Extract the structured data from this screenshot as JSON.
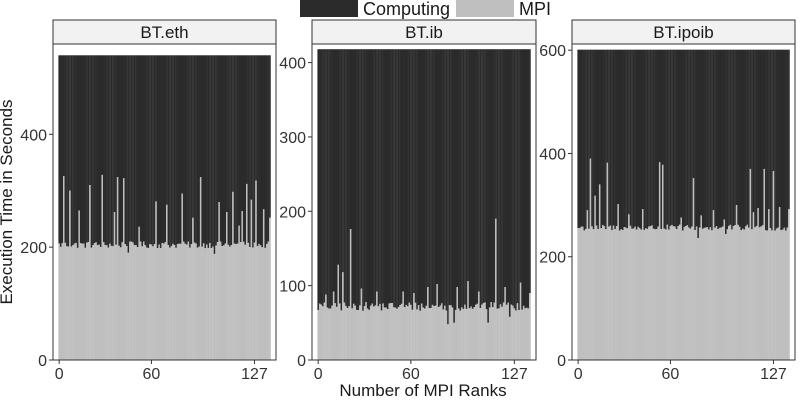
{
  "chart_data": [
    {
      "type": "bar",
      "stacked": true,
      "facet_title": "BT.eth",
      "ylim": [
        0,
        560
      ],
      "yticks": [
        0,
        200,
        400
      ],
      "xticks": [
        0,
        60,
        127
      ],
      "computing_total": 540,
      "mpi_base": 204,
      "mpi_jitter": 6,
      "mpi_spikes": [
        [
          3,
          326
        ],
        [
          7,
          300
        ],
        [
          13,
          265
        ],
        [
          20,
          310
        ],
        [
          28,
          328
        ],
        [
          36,
          262
        ],
        [
          38,
          324
        ],
        [
          42,
          322
        ],
        [
          52,
          236
        ],
        [
          63,
          281
        ],
        [
          70,
          275
        ],
        [
          80,
          295
        ],
        [
          87,
          252
        ],
        [
          92,
          324
        ],
        [
          104,
          280
        ],
        [
          109,
          262
        ],
        [
          113,
          298
        ],
        [
          117,
          238
        ],
        [
          119,
          264
        ],
        [
          122,
          312
        ],
        [
          125,
          284
        ],
        [
          128,
          318
        ],
        [
          133,
          267
        ],
        [
          137,
          252
        ]
      ],
      "mpi_low": [
        [
          45,
          190
        ],
        [
          101,
          188
        ]
      ]
    },
    {
      "type": "bar",
      "stacked": true,
      "facet_title": "BT.ib",
      "ylim": [
        0,
        425
      ],
      "yticks": [
        0,
        100,
        200,
        300,
        400
      ],
      "xticks": [
        0,
        60,
        127
      ],
      "computing_total": 418,
      "mpi_base": 72,
      "mpi_jitter": 6,
      "mpi_spikes": [
        [
          5,
          88
        ],
        [
          10,
          92
        ],
        [
          13,
          128
        ],
        [
          16,
          118
        ],
        [
          21,
          176
        ],
        [
          28,
          96
        ],
        [
          38,
          92
        ],
        [
          55,
          92
        ],
        [
          62,
          90
        ],
        [
          71,
          98
        ],
        [
          77,
          102
        ],
        [
          90,
          98
        ],
        [
          97,
          106
        ],
        [
          104,
          92
        ],
        [
          115,
          190
        ],
        [
          121,
          98
        ],
        [
          131,
          104
        ],
        [
          137,
          90
        ]
      ],
      "mpi_low": [
        [
          84,
          48
        ],
        [
          88,
          50
        ],
        [
          110,
          50
        ],
        [
          124,
          58
        ]
      ]
    },
    {
      "type": "bar",
      "stacked": true,
      "facet_title": "BT.ipoib",
      "ylim": [
        0,
        612
      ],
      "yticks": [
        0,
        200,
        400,
        600
      ],
      "xticks": [
        0,
        60,
        127
      ],
      "computing_total": 601,
      "mpi_base": 256,
      "mpi_jitter": 6,
      "mpi_spikes": [
        [
          6,
          290
        ],
        [
          8,
          390
        ],
        [
          11,
          318
        ],
        [
          14,
          340
        ],
        [
          19,
          382
        ],
        [
          26,
          302
        ],
        [
          33,
          282
        ],
        [
          42,
          292
        ],
        [
          53,
          383
        ],
        [
          55,
          378
        ],
        [
          67,
          276
        ],
        [
          75,
          352
        ],
        [
          80,
          280
        ],
        [
          88,
          290
        ],
        [
          95,
          272
        ],
        [
          103,
          300
        ],
        [
          112,
          370
        ],
        [
          114,
          286
        ],
        [
          117,
          294
        ],
        [
          121,
          370
        ],
        [
          124,
          292
        ],
        [
          127,
          366
        ],
        [
          131,
          296
        ],
        [
          137,
          292
        ]
      ],
      "mpi_low": [
        [
          78,
          236
        ],
        [
          96,
          244
        ]
      ]
    }
  ],
  "x_domain": [
    -4,
    141
  ],
  "n_ranks": 138,
  "legend": [
    {
      "label": "Computing",
      "color": "#2b2b2b"
    },
    {
      "label": "MPI",
      "color": "#bfbfbf"
    }
  ],
  "xlabel": "Number of MPI Ranks",
  "ylabel": "Execution Time in Seconds",
  "colors": {
    "computing": "#2b2b2b",
    "mpi": "#bfbfbf",
    "strip": "#f2f2f2",
    "panel_border": "#333333"
  }
}
